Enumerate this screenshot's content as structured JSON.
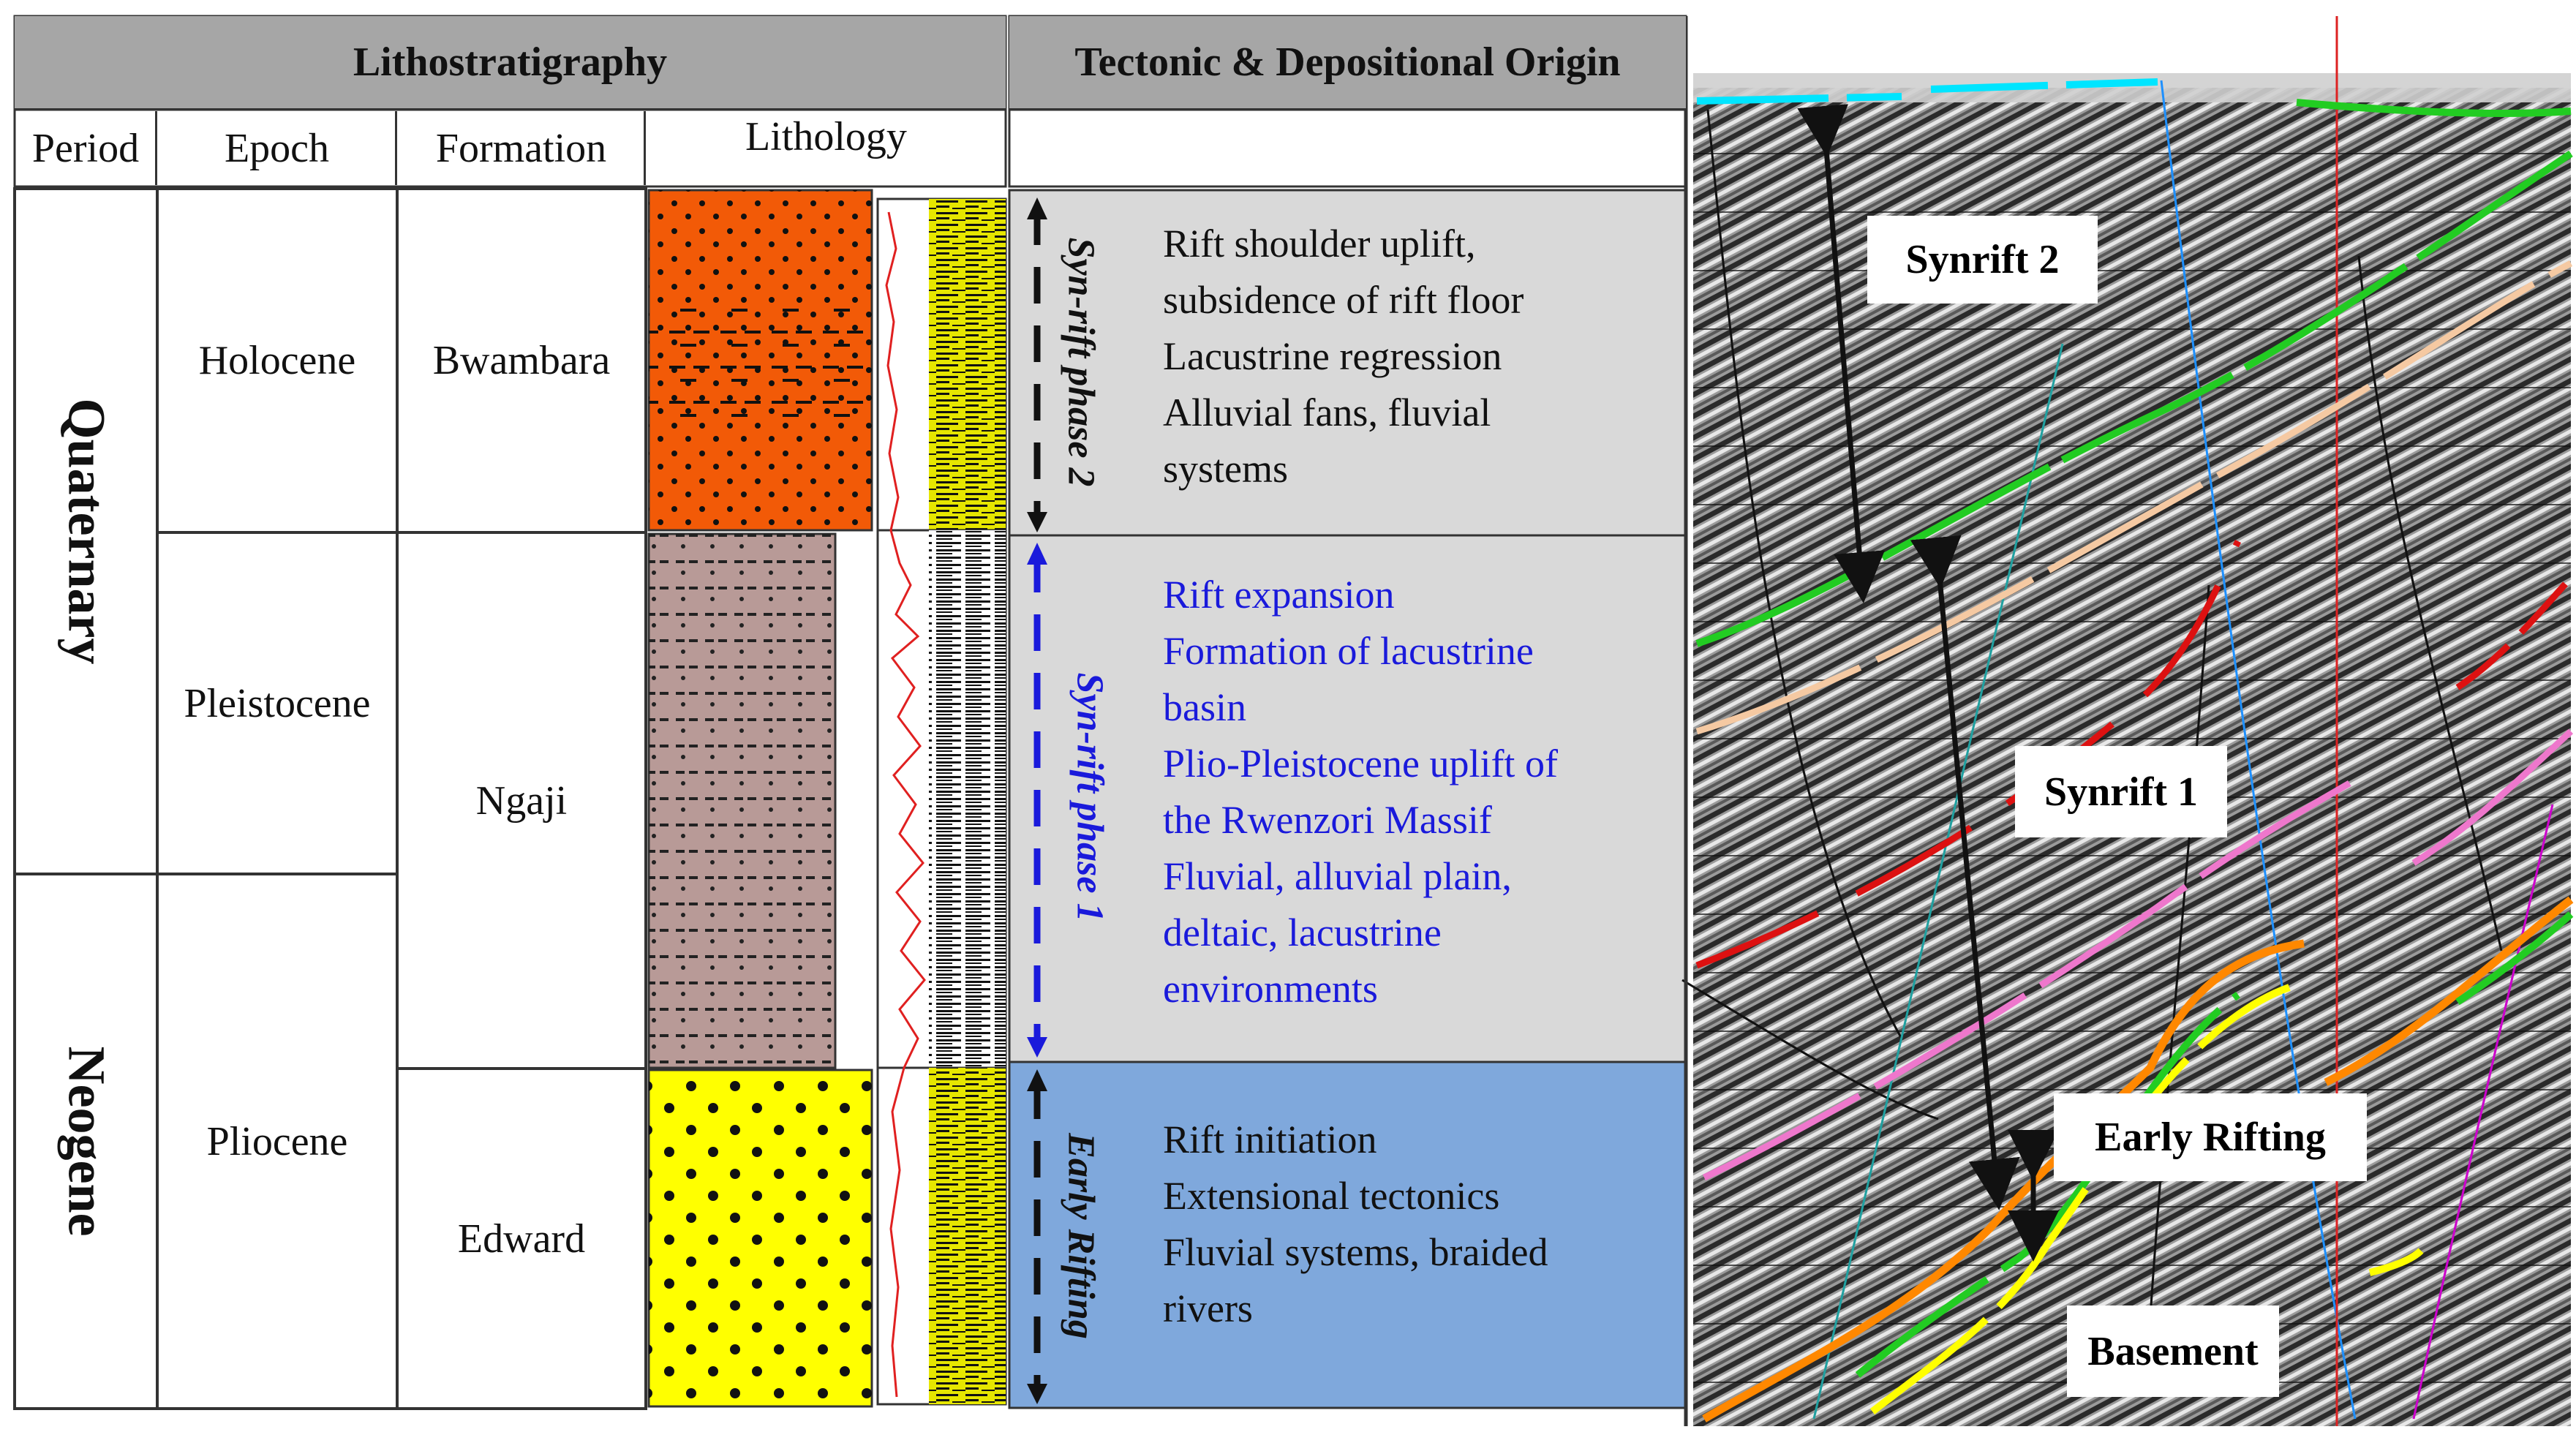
{
  "headers": {
    "litho": "Lithostratigraphy",
    "tectonic": "Tectonic & Depositional Origin"
  },
  "columns": {
    "period": "Period",
    "epoch": "Epoch",
    "formation": "Formation",
    "lithology": "Lithology"
  },
  "periods": [
    "Quaternary",
    "Neogene"
  ],
  "epochs": [
    "Holocene",
    "Pleistocene",
    "Pliocene"
  ],
  "formations": [
    "Bwambara",
    "Ngaji",
    "Edward"
  ],
  "phases": [
    {
      "name": "Syn-rift phase 2",
      "color": "#111111",
      "bg": "#d9d9d9",
      "lines": [
        "Rift shoulder uplift,",
        "subsidence of rift floor",
        "Lacustrine regression",
        "Alluvial fans, fluvial",
        "systems"
      ]
    },
    {
      "name": "Syn-rift phase 1",
      "color": "#1a1adb",
      "bg": "#d9d9d9",
      "lines": [
        "Rift expansion",
        "Formation of lacustrine",
        "basin",
        "Plio-Pleistocene uplift of",
        "the Rwenzori Massif",
        "Fluvial, alluvial plain,",
        "deltaic, lacustrine",
        "environments"
      ]
    },
    {
      "name": "Early Rifting",
      "color": "#111111",
      "bg": "#7fa8dc",
      "lines": [
        "Rift initiation",
        "Extensional tectonics",
        "Fluvial systems, braided",
        "rivers"
      ]
    }
  ],
  "lithology_colors": {
    "bwambara": "#f25a07",
    "ngaji": "#b89a97",
    "edward": "#ffff00",
    "log_fill": "#e8e800"
  },
  "seismic_labels": [
    "Synrift 2",
    "Synrift 1",
    "Early Rifting",
    "Basement"
  ],
  "horizon_colors": [
    "#00e5ff",
    "#22cc22",
    "#f5c9a2",
    "#dd1111",
    "#ee77cc",
    "#ff8800",
    "#ffff00"
  ]
}
